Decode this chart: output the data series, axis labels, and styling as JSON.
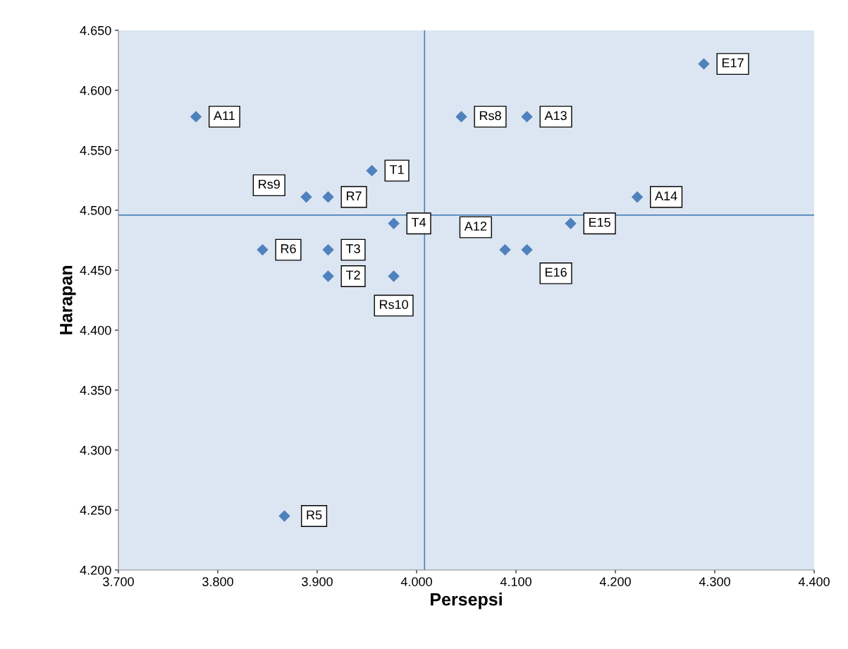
{
  "chart_data": {
    "type": "scatter",
    "xlabel": "Persepsi",
    "ylabel": "Harapan",
    "x": [
      3.778,
      4.045,
      4.111,
      4.289,
      3.955,
      3.889,
      3.911,
      4.222,
      3.977,
      4.155,
      3.845,
      3.911,
      4.089,
      4.111,
      3.911,
      3.977,
      3.867
    ],
    "series": [
      {
        "color": "#4f81bd",
        "values": [
          4.578,
          4.578,
          4.578,
          4.622,
          4.533,
          4.511,
          4.511,
          4.511,
          4.489,
          4.489,
          4.467,
          4.467,
          4.467,
          4.467,
          4.445,
          4.445,
          4.245
        ]
      }
    ],
    "annotations": [
      {
        "text": "A11",
        "x": 3.778,
        "y": 4.578
      },
      {
        "text": "Rs8",
        "x": 4.045,
        "y": 4.578
      },
      {
        "text": "A13",
        "x": 4.111,
        "y": 4.578
      },
      {
        "text": "E17",
        "x": 4.289,
        "y": 4.622
      },
      {
        "text": "T1",
        "x": 3.955,
        "y": 4.533
      },
      {
        "text": "Rs9",
        "x": 3.889,
        "y": 4.511
      },
      {
        "text": "R7",
        "x": 3.911,
        "y": 4.511
      },
      {
        "text": "A14",
        "x": 4.222,
        "y": 4.511
      },
      {
        "text": "T4",
        "x": 3.977,
        "y": 4.489
      },
      {
        "text": "E15",
        "x": 4.155,
        "y": 4.489
      },
      {
        "text": "R6",
        "x": 3.845,
        "y": 4.467
      },
      {
        "text": "T3",
        "x": 3.911,
        "y": 4.467
      },
      {
        "text": "A12",
        "x": 4.089,
        "y": 4.467
      },
      {
        "text": "E16",
        "x": 4.111,
        "y": 4.467
      },
      {
        "text": "T2",
        "x": 3.911,
        "y": 4.445
      },
      {
        "text": "Rs10",
        "x": 3.977,
        "y": 4.445
      },
      {
        "text": "R5",
        "x": 3.867,
        "y": 4.245
      }
    ],
    "ref_lines": [
      {
        "axis": "x",
        "value": 4.008,
        "color": "#4f81bd"
      },
      {
        "axis": "y",
        "value": 4.496,
        "color": "#4f81bd"
      }
    ],
    "xlim": [
      3.7,
      4.4
    ],
    "xticks": [
      {
        "value": 3.7,
        "label": "3.700"
      },
      {
        "value": 3.8,
        "label": "3.800"
      },
      {
        "value": 3.9,
        "label": "3.900"
      },
      {
        "value": 4.0,
        "label": "4.000"
      },
      {
        "value": 4.1,
        "label": "4.100"
      },
      {
        "value": 4.2,
        "label": "4.200"
      },
      {
        "value": 4.3,
        "label": "4.300"
      },
      {
        "value": 4.4,
        "label": "4.400"
      }
    ],
    "ylim": [
      4.2,
      4.65
    ],
    "yticks": [
      {
        "value": 4.2,
        "label": "4.200"
      },
      {
        "value": 4.25,
        "label": "4.250"
      },
      {
        "value": 4.3,
        "label": "4.300"
      },
      {
        "value": 4.35,
        "label": "4.350"
      },
      {
        "value": 4.4,
        "label": "4.400"
      },
      {
        "value": 4.45,
        "label": "4.450"
      },
      {
        "value": 4.5,
        "label": "4.500"
      },
      {
        "value": 4.55,
        "label": "4.550"
      },
      {
        "value": 4.6,
        "label": "4.600"
      },
      {
        "value": 4.65,
        "label": "4.650"
      }
    ],
    "marker": "diamond",
    "grid": false
  }
}
